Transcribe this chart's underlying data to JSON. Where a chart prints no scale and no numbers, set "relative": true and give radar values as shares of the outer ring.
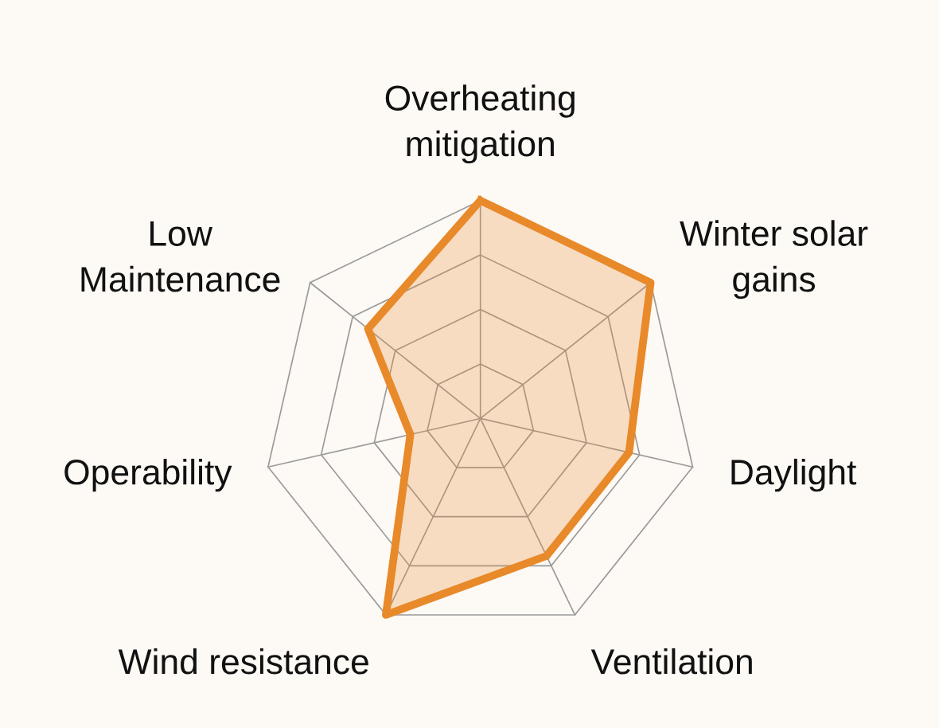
{
  "chart_data": {
    "type": "radar",
    "relative": true,
    "grid": true,
    "categories": [
      "Overheating\nmitigation",
      "Winter solar\ngains",
      "Daylight",
      "Ventilation",
      "Wind resistance",
      "Operability",
      "Low\nMaintenance"
    ],
    "series": [
      {
        "color": "#e8892a",
        "values": [
          1.0,
          1.0,
          0.7,
          0.7,
          1.0,
          0.33,
          0.66
        ]
      }
    ]
  }
}
